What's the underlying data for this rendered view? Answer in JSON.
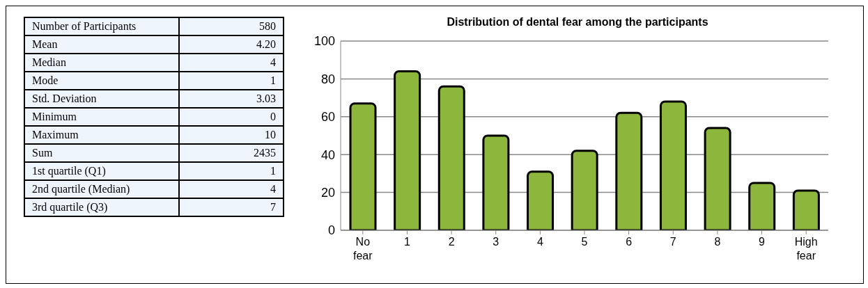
{
  "chart_data": [
    {
      "type": "other",
      "categories": [
        "Number of Participants",
        "Mean",
        "Median",
        "Mode",
        "Std. Deviation",
        "Minimum",
        "Maximum",
        "Sum",
        "1st quartile (Q1)",
        "2nd quartile (Median)",
        "3rd quartile (Q3)"
      ],
      "values": [
        580,
        4.2,
        4,
        1,
        3.03,
        0,
        10,
        2435,
        1,
        4,
        7
      ],
      "value_labels": [
        "580",
        "4.20",
        "4",
        "1",
        "3.03",
        "0",
        "10",
        "2435",
        "1",
        "4",
        "7"
      ]
    },
    {
      "type": "bar",
      "title": "Distribution of dental fear among the participants",
      "categories": [
        "No fear",
        "1",
        "2",
        "3",
        "4",
        "5",
        "6",
        "7",
        "8",
        "9",
        "High fear"
      ],
      "values": [
        67,
        84,
        76,
        50,
        31,
        42,
        62,
        68,
        54,
        25,
        21
      ],
      "color": "#8db63c",
      "ylim": [
        0,
        100
      ],
      "yticks": [
        0,
        20,
        40,
        60,
        80,
        100
      ],
      "grid": "y",
      "legend": false
    }
  ]
}
